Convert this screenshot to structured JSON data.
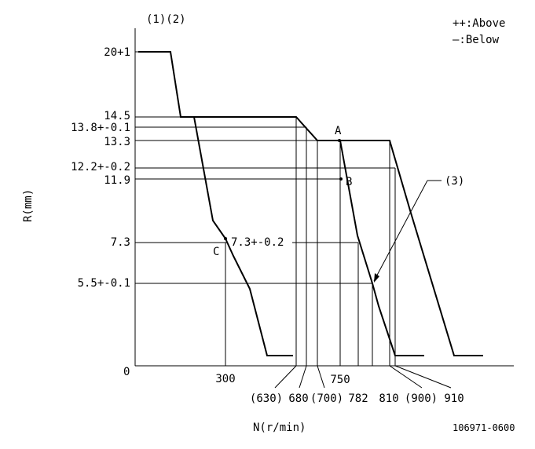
{
  "header": {
    "ref_labels": "(1)(2)",
    "legend_above": "++:Above",
    "legend_below": "—:Below"
  },
  "axes": {
    "y_title": "R(mm)",
    "x_title": "N(r/min)",
    "origin": "0"
  },
  "y_labels": {
    "y20": "20+1",
    "y145": "14.5",
    "y138": "13.8+-0.1",
    "y133": "13.3",
    "y122": "12.2+-0.2",
    "y119": "11.9",
    "y73": "7.3",
    "y55": "5.5+-0.1"
  },
  "x_labels": {
    "x300": "300",
    "x630": "(630)",
    "x680": "680",
    "x700": "(700)",
    "x750": "750",
    "x782": "782",
    "x810": "810",
    "x900": "(900)",
    "x910": "910"
  },
  "annotations": {
    "point_a": "A",
    "point_b": "B",
    "point_c": "C",
    "mid_value": "7.3+-0.2",
    "ref3": "(3)"
  },
  "footer": {
    "doc_code": "106971-0600"
  }
}
